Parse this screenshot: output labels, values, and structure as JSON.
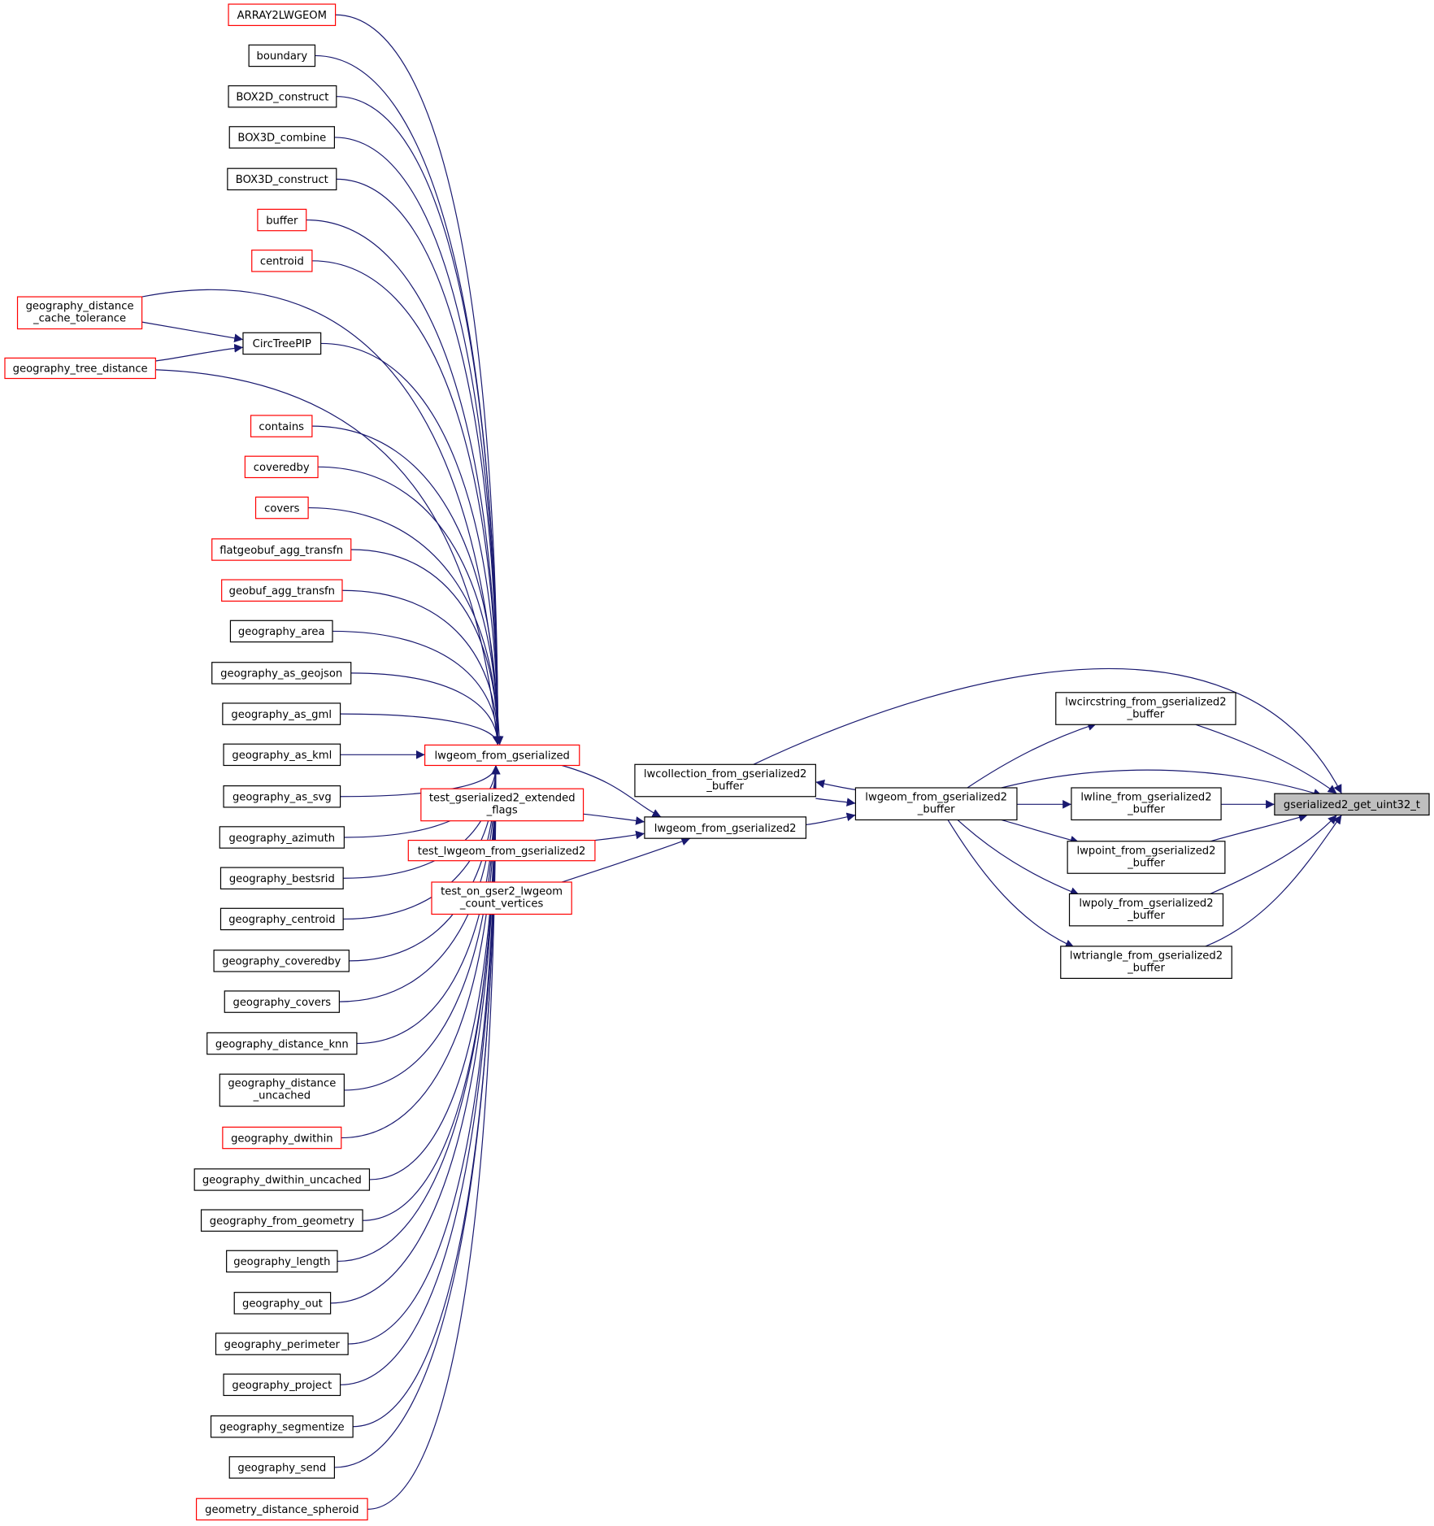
{
  "colors": {
    "edge": "#191970",
    "red_border": "#ff0000",
    "black_border": "#000000",
    "focus_fill": "#bfbfbf"
  },
  "nodes": [
    {
      "id": "ARRAY2LWGEOM",
      "lines": [
        "ARRAY2LWGEOM"
      ],
      "color": "red"
    },
    {
      "id": "boundary",
      "lines": [
        "boundary"
      ],
      "color": "black"
    },
    {
      "id": "BOX2D_construct",
      "lines": [
        "BOX2D_construct"
      ],
      "color": "black"
    },
    {
      "id": "BOX3D_combine",
      "lines": [
        "BOX3D_combine"
      ],
      "color": "black"
    },
    {
      "id": "BOX3D_construct",
      "lines": [
        "BOX3D_construct"
      ],
      "color": "black"
    },
    {
      "id": "buffer",
      "lines": [
        "buffer"
      ],
      "color": "red"
    },
    {
      "id": "centroid",
      "lines": [
        "centroid"
      ],
      "color": "red"
    },
    {
      "id": "geography_distance_cache_tolerance",
      "lines": [
        "geography_distance",
        "_cache_tolerance"
      ],
      "color": "red"
    },
    {
      "id": "CircTreePIP",
      "lines": [
        "CircTreePIP"
      ],
      "color": "black"
    },
    {
      "id": "geography_tree_distance",
      "lines": [
        "geography_tree_distance"
      ],
      "color": "red"
    },
    {
      "id": "contains",
      "lines": [
        "contains"
      ],
      "color": "red"
    },
    {
      "id": "coveredby",
      "lines": [
        "coveredby"
      ],
      "color": "red"
    },
    {
      "id": "covers",
      "lines": [
        "covers"
      ],
      "color": "red"
    },
    {
      "id": "flatgeobuf_agg_transfn",
      "lines": [
        "flatgeobuf_agg_transfn"
      ],
      "color": "red"
    },
    {
      "id": "geobuf_agg_transfn",
      "lines": [
        "geobuf_agg_transfn"
      ],
      "color": "red"
    },
    {
      "id": "geography_area",
      "lines": [
        "geography_area"
      ],
      "color": "black"
    },
    {
      "id": "geography_as_geojson",
      "lines": [
        "geography_as_geojson"
      ],
      "color": "black"
    },
    {
      "id": "geography_as_gml",
      "lines": [
        "geography_as_gml"
      ],
      "color": "black"
    },
    {
      "id": "geography_as_kml",
      "lines": [
        "geography_as_kml"
      ],
      "color": "black"
    },
    {
      "id": "geography_as_svg",
      "lines": [
        "geography_as_svg"
      ],
      "color": "black"
    },
    {
      "id": "geography_azimuth",
      "lines": [
        "geography_azimuth"
      ],
      "color": "black"
    },
    {
      "id": "geography_bestsrid",
      "lines": [
        "geography_bestsrid"
      ],
      "color": "black"
    },
    {
      "id": "geography_centroid",
      "lines": [
        "geography_centroid"
      ],
      "color": "black"
    },
    {
      "id": "geography_coveredby",
      "lines": [
        "geography_coveredby"
      ],
      "color": "black"
    },
    {
      "id": "geography_covers",
      "lines": [
        "geography_covers"
      ],
      "color": "black"
    },
    {
      "id": "geography_distance_knn",
      "lines": [
        "geography_distance_knn"
      ],
      "color": "black"
    },
    {
      "id": "geography_distance_uncached",
      "lines": [
        "geography_distance",
        "_uncached"
      ],
      "color": "black"
    },
    {
      "id": "geography_dwithin",
      "lines": [
        "geography_dwithin"
      ],
      "color": "red"
    },
    {
      "id": "geography_dwithin_uncached",
      "lines": [
        "geography_dwithin_uncached"
      ],
      "color": "black"
    },
    {
      "id": "geography_from_geometry",
      "lines": [
        "geography_from_geometry"
      ],
      "color": "black"
    },
    {
      "id": "geography_length",
      "lines": [
        "geography_length"
      ],
      "color": "black"
    },
    {
      "id": "geography_out",
      "lines": [
        "geography_out"
      ],
      "color": "black"
    },
    {
      "id": "geography_perimeter",
      "lines": [
        "geography_perimeter"
      ],
      "color": "black"
    },
    {
      "id": "geography_project",
      "lines": [
        "geography_project"
      ],
      "color": "black"
    },
    {
      "id": "geography_segmentize",
      "lines": [
        "geography_segmentize"
      ],
      "color": "black"
    },
    {
      "id": "geography_send",
      "lines": [
        "geography_send"
      ],
      "color": "black"
    },
    {
      "id": "geometry_distance_spheroid",
      "lines": [
        "geometry_distance_spheroid"
      ],
      "color": "red"
    },
    {
      "id": "lwgeom_from_gserialized",
      "lines": [
        "lwgeom_from_gserialized"
      ],
      "color": "red"
    },
    {
      "id": "test_gserialized2_extended_flags",
      "lines": [
        "test_gserialized2_extended",
        "_flags"
      ],
      "color": "red"
    },
    {
      "id": "test_lwgeom_from_gserialized2",
      "lines": [
        "test_lwgeom_from_gserialized2"
      ],
      "color": "red"
    },
    {
      "id": "test_on_gser2_lwgeom_count_vertices",
      "lines": [
        "test_on_gser2_lwgeom",
        "_count_vertices"
      ],
      "color": "red"
    },
    {
      "id": "lwcollection_from_gserialized2_buffer",
      "lines": [
        "lwcollection_from_gserialized2",
        "_buffer"
      ],
      "color": "black"
    },
    {
      "id": "lwgeom_from_gserialized2",
      "lines": [
        "lwgeom_from_gserialized2"
      ],
      "color": "black"
    },
    {
      "id": "lwgeom_from_gserialized2_buffer",
      "lines": [
        "lwgeom_from_gserialized2",
        "_buffer"
      ],
      "color": "black"
    },
    {
      "id": "lwcircstring_from_gserialized2_buffer",
      "lines": [
        "lwcircstring_from_gserialized2",
        "_buffer"
      ],
      "color": "black"
    },
    {
      "id": "lwline_from_gserialized2_buffer",
      "lines": [
        "lwline_from_gserialized2",
        "_buffer"
      ],
      "color": "black"
    },
    {
      "id": "lwpoint_from_gserialized2_buffer",
      "lines": [
        "lwpoint_from_gserialized2",
        "_buffer"
      ],
      "color": "black"
    },
    {
      "id": "lwpoly_from_gserialized2_buffer",
      "lines": [
        "lwpoly_from_gserialized2",
        "_buffer"
      ],
      "color": "black"
    },
    {
      "id": "lwtriangle_from_gserialized2_buffer",
      "lines": [
        "lwtriangle_from_gserialized2",
        "_buffer"
      ],
      "color": "black"
    },
    {
      "id": "gserialized2_get_uint32_t",
      "lines": [
        "gserialized2_get_uint32_t"
      ],
      "color": "focus"
    }
  ],
  "edges": [
    [
      "ARRAY2LWGEOM",
      "lwgeom_from_gserialized"
    ],
    [
      "boundary",
      "lwgeom_from_gserialized"
    ],
    [
      "BOX2D_construct",
      "lwgeom_from_gserialized"
    ],
    [
      "BOX3D_combine",
      "lwgeom_from_gserialized"
    ],
    [
      "BOX3D_construct",
      "lwgeom_from_gserialized"
    ],
    [
      "buffer",
      "lwgeom_from_gserialized"
    ],
    [
      "centroid",
      "lwgeom_from_gserialized"
    ],
    [
      "geography_distance_cache_tolerance",
      "lwgeom_from_gserialized"
    ],
    [
      "geography_distance_cache_tolerance",
      "CircTreePIP"
    ],
    [
      "geography_tree_distance",
      "CircTreePIP"
    ],
    [
      "CircTreePIP",
      "lwgeom_from_gserialized"
    ],
    [
      "geography_tree_distance",
      "lwgeom_from_gserialized"
    ],
    [
      "contains",
      "lwgeom_from_gserialized"
    ],
    [
      "coveredby",
      "lwgeom_from_gserialized"
    ],
    [
      "covers",
      "lwgeom_from_gserialized"
    ],
    [
      "flatgeobuf_agg_transfn",
      "lwgeom_from_gserialized"
    ],
    [
      "geobuf_agg_transfn",
      "lwgeom_from_gserialized"
    ],
    [
      "geography_area",
      "lwgeom_from_gserialized"
    ],
    [
      "geography_as_geojson",
      "lwgeom_from_gserialized"
    ],
    [
      "geography_as_gml",
      "lwgeom_from_gserialized"
    ],
    [
      "geography_as_kml",
      "lwgeom_from_gserialized"
    ],
    [
      "geography_as_svg",
      "lwgeom_from_gserialized"
    ],
    [
      "geography_azimuth",
      "lwgeom_from_gserialized"
    ],
    [
      "geography_bestsrid",
      "lwgeom_from_gserialized"
    ],
    [
      "geography_centroid",
      "lwgeom_from_gserialized"
    ],
    [
      "geography_coveredby",
      "lwgeom_from_gserialized"
    ],
    [
      "geography_covers",
      "lwgeom_from_gserialized"
    ],
    [
      "geography_distance_knn",
      "lwgeom_from_gserialized"
    ],
    [
      "geography_distance_uncached",
      "lwgeom_from_gserialized"
    ],
    [
      "geography_dwithin",
      "lwgeom_from_gserialized"
    ],
    [
      "geography_dwithin_uncached",
      "lwgeom_from_gserialized"
    ],
    [
      "geography_from_geometry",
      "lwgeom_from_gserialized"
    ],
    [
      "geography_length",
      "lwgeom_from_gserialized"
    ],
    [
      "geography_out",
      "lwgeom_from_gserialized"
    ],
    [
      "geography_perimeter",
      "lwgeom_from_gserialized"
    ],
    [
      "geography_project",
      "lwgeom_from_gserialized"
    ],
    [
      "geography_segmentize",
      "lwgeom_from_gserialized"
    ],
    [
      "geography_send",
      "lwgeom_from_gserialized"
    ],
    [
      "geometry_distance_spheroid",
      "lwgeom_from_gserialized"
    ],
    [
      "lwgeom_from_gserialized",
      "lwgeom_from_gserialized2"
    ],
    [
      "test_gserialized2_extended_flags",
      "lwgeom_from_gserialized2"
    ],
    [
      "test_lwgeom_from_gserialized2",
      "lwgeom_from_gserialized2"
    ],
    [
      "test_on_gser2_lwgeom_count_vertices",
      "lwgeom_from_gserialized2"
    ],
    [
      "lwgeom_from_gserialized2",
      "lwgeom_from_gserialized2_buffer"
    ],
    [
      "lwcollection_from_gserialized2_buffer",
      "lwgeom_from_gserialized2_buffer"
    ],
    [
      "lwgeom_from_gserialized2_buffer",
      "lwcollection_from_gserialized2_buffer"
    ],
    [
      "lwcollection_from_gserialized2_buffer",
      "gserialized2_get_uint32_t"
    ],
    [
      "lwgeom_from_gserialized2_buffer",
      "lwcircstring_from_gserialized2_buffer"
    ],
    [
      "lwgeom_from_gserialized2_buffer",
      "lwline_from_gserialized2_buffer"
    ],
    [
      "lwgeom_from_gserialized2_buffer",
      "lwpoint_from_gserialized2_buffer"
    ],
    [
      "lwgeom_from_gserialized2_buffer",
      "lwpoly_from_gserialized2_buffer"
    ],
    [
      "lwgeom_from_gserialized2_buffer",
      "lwtriangle_from_gserialized2_buffer"
    ],
    [
      "lwgeom_from_gserialized2_buffer",
      "gserialized2_get_uint32_t"
    ],
    [
      "lwcircstring_from_gserialized2_buffer",
      "gserialized2_get_uint32_t"
    ],
    [
      "lwline_from_gserialized2_buffer",
      "gserialized2_get_uint32_t"
    ],
    [
      "lwpoint_from_gserialized2_buffer",
      "gserialized2_get_uint32_t"
    ],
    [
      "lwpoly_from_gserialized2_buffer",
      "gserialized2_get_uint32_t"
    ],
    [
      "lwtriangle_from_gserialized2_buffer",
      "gserialized2_get_uint32_t"
    ]
  ]
}
